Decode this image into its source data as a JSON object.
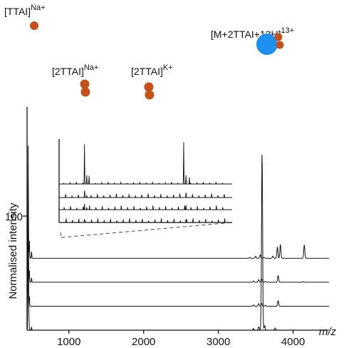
{
  "chart_data": {
    "type": "line",
    "xlabel": "m/z",
    "ylabel": "Normalised intensity",
    "xlim": [
      440,
      4480
    ],
    "x_ticks": [
      "1000",
      "2000",
      "3000",
      "4000"
    ],
    "x_tick_values": [
      1000,
      2000,
      3000,
      4000
    ],
    "y_tick_label": "100",
    "y_tick_value": 100,
    "y_range": [
      0,
      170
    ],
    "offset_step": 21,
    "series": [
      {
        "baseline": 63,
        "peaks": [
          [
            455,
            80
          ],
          [
            470,
            18
          ],
          [
            500,
            6
          ],
          [
            3420,
            0.8
          ],
          [
            3500,
            1.8
          ],
          [
            3560,
            3
          ],
          [
            3610,
            0.8
          ],
          [
            3730,
            2
          ],
          [
            3790,
            10
          ],
          [
            3830,
            12
          ],
          [
            4150,
            12
          ]
        ]
      },
      {
        "baseline": 42,
        "peaks": [
          [
            455,
            55
          ],
          [
            470,
            12
          ],
          [
            500,
            4
          ],
          [
            3470,
            1.2
          ],
          [
            3540,
            2.4
          ],
          [
            3580,
            3
          ],
          [
            3630,
            0.8
          ],
          [
            3800,
            6
          ],
          [
            4130,
            0.6
          ]
        ]
      },
      {
        "baseline": 21,
        "peaks": [
          [
            455,
            45
          ],
          [
            470,
            10
          ],
          [
            3470,
            1.2
          ],
          [
            3540,
            2.4
          ],
          [
            3580,
            2.5
          ],
          [
            3630,
            0.8
          ],
          [
            3800,
            5
          ]
        ]
      },
      {
        "baseline": 0,
        "peaks": [
          [
            455,
            170
          ],
          [
            465,
            12
          ],
          [
            500,
            3
          ],
          [
            3470,
            1.5
          ],
          [
            3540,
            3
          ],
          [
            3585,
            158
          ],
          [
            3620,
            4
          ],
          [
            3760,
            2
          ]
        ]
      }
    ],
    "annotations": [
      {
        "label": "[TTAI]",
        "superscript": "Na+",
        "x": 455,
        "y": 170,
        "marker": "one-orange"
      },
      {
        "label": "[2TTAI]",
        "superscript": "Na+",
        "x": 1120,
        "y": 100,
        "marker": "two-orange"
      },
      {
        "label": "[2TTAI]",
        "superscript": "K+",
        "x": 1990,
        "y": 100,
        "marker": "two-orange"
      },
      {
        "label": "[M+2TTAI+13H]",
        "superscript": "13+",
        "x": 3585,
        "y": 158,
        "marker": "blue-with-two-orange"
      }
    ],
    "inset": {
      "xlim": [
        900,
        2400
      ],
      "source_x_range": [
        900,
        2400
      ],
      "traces": [
        {
          "peaks": [
            [
              1120,
              36
            ],
            [
              1140,
              8
            ],
            [
              1160,
              6
            ],
            [
              1980,
              38
            ],
            [
              2000,
              8
            ],
            [
              2030,
              6
            ]
          ]
        },
        {
          "peaks": [
            [
              1120,
              4
            ],
            [
              1140,
              2
            ],
            [
              2000,
              3
            ]
          ]
        },
        {
          "peaks": [
            [
              1120,
              5
            ],
            [
              1140,
              2
            ],
            [
              2000,
              4
            ]
          ]
        },
        {
          "peaks": [
            [
              1120,
              3
            ],
            [
              2000,
              3
            ]
          ]
        }
      ]
    },
    "colors": {
      "ion_orange": "#c4501a",
      "protein_blue": "#1e90f0",
      "trace": "#111111"
    }
  }
}
